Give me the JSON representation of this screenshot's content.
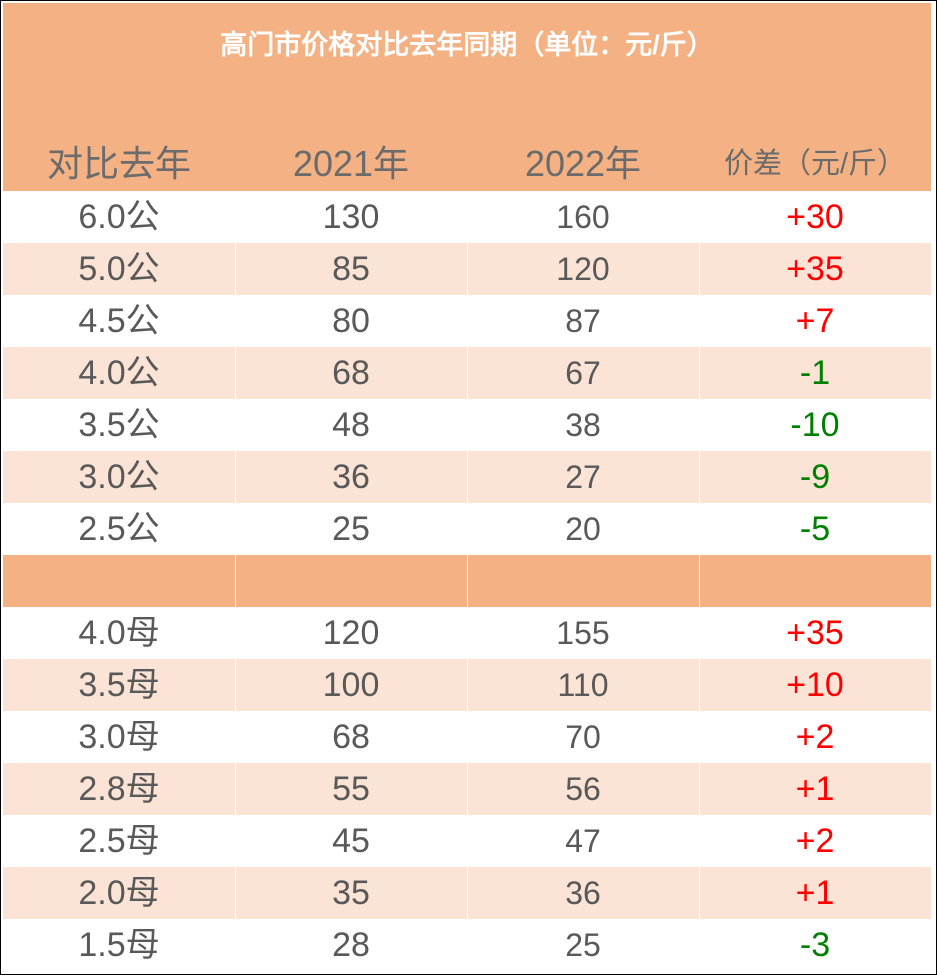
{
  "title": "高门市价格对比去年同期（单位：元/斤）",
  "headers": {
    "label": "对比去年",
    "y2021": "2021年",
    "y2022": "2022年",
    "diff": "价差（元/斤）"
  },
  "colors": {
    "header_bg": "#f4b183",
    "alt_row": "#fbe3d6",
    "up": "#ff0000",
    "down": "#008000",
    "text": "#595959"
  },
  "male_rows": [
    {
      "label": "6.0公",
      "y2021": "130",
      "y2022": "160",
      "diff": "+30"
    },
    {
      "label": "5.0公",
      "y2021": "85",
      "y2022": "120",
      "diff": "+35"
    },
    {
      "label": "4.5公",
      "y2021": "80",
      "y2022": "87",
      "diff": "+7"
    },
    {
      "label": "4.0公",
      "y2021": "68",
      "y2022": "67",
      "diff": "-1"
    },
    {
      "label": "3.5公",
      "y2021": "48",
      "y2022": "38",
      "diff": "-10"
    },
    {
      "label": "3.0公",
      "y2021": "36",
      "y2022": "27",
      "diff": "-9"
    },
    {
      "label": "2.5公",
      "y2021": "25",
      "y2022": "20",
      "diff": "-5"
    }
  ],
  "female_rows": [
    {
      "label": "4.0母",
      "y2021": "120",
      "y2022": "155",
      "diff": "+35"
    },
    {
      "label": "3.5母",
      "y2021": "100",
      "y2022": "110",
      "diff": "+10"
    },
    {
      "label": "3.0母",
      "y2021": "68",
      "y2022": "70",
      "diff": "+2"
    },
    {
      "label": "2.8母",
      "y2021": "55",
      "y2022": "56",
      "diff": "+1"
    },
    {
      "label": "2.5母",
      "y2021": "45",
      "y2022": "47",
      "diff": "+2"
    },
    {
      "label": "2.0母",
      "y2021": "35",
      "y2022": "36",
      "diff": "+1"
    },
    {
      "label": "1.5母",
      "y2021": "28",
      "y2022": "25",
      "diff": "-3"
    }
  ]
}
